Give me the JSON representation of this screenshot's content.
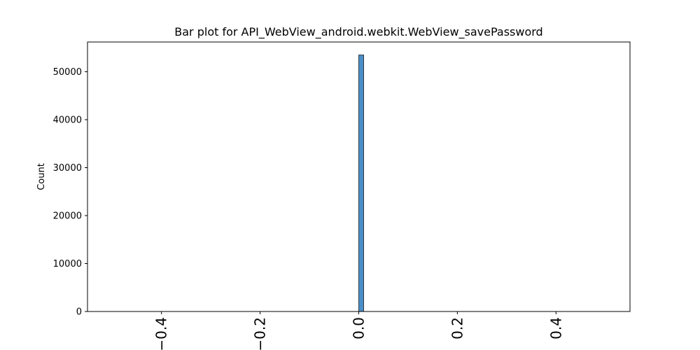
{
  "chart_data": {
    "type": "bar",
    "title": "Bar plot for API_WebView_android.webkit.WebView_savePassword",
    "xlabel": "",
    "ylabel": "Count",
    "xlim": [
      -0.55,
      0.55
    ],
    "ylim": [
      0,
      56200
    ],
    "xticks": [
      -0.4,
      -0.2,
      0.0,
      0.2,
      0.4
    ],
    "xtick_labels": [
      "−0.4",
      "−0.2",
      "0.0",
      "0.2",
      "0.4"
    ],
    "yticks": [
      0,
      10000,
      20000,
      30000,
      40000,
      50000
    ],
    "ytick_labels": [
      "0",
      "10000",
      "20000",
      "30000",
      "40000",
      "50000"
    ],
    "bars": [
      {
        "x_start": 0.0,
        "x_end": 0.01,
        "value": 53500
      }
    ],
    "bar_color": "#4c8fc7",
    "bar_edge_color": "#1f1f1f",
    "grid": false,
    "legend": "none"
  }
}
